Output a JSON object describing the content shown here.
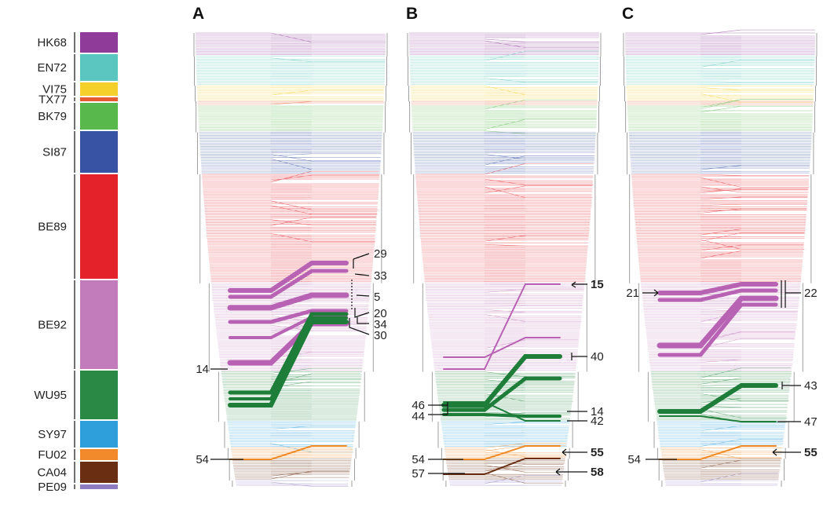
{
  "panels": [
    "A",
    "B",
    "C"
  ],
  "clusters": [
    {
      "name": "HK68",
      "color": "#8e3b9a",
      "rows": 15
    },
    {
      "name": "EN72",
      "color": "#5bc6bf",
      "rows": 19
    },
    {
      "name": "VI75",
      "color": "#f5cf2a",
      "rows": 10
    },
    {
      "name": "TX77",
      "color": "#e35b2e",
      "rows": 3
    },
    {
      "name": "BK79",
      "color": "#58b84b",
      "rows": 17
    },
    {
      "name": "SI87",
      "color": "#3953a4",
      "rows": 27
    },
    {
      "name": "BE89",
      "color": "#e3222a",
      "rows": 70
    },
    {
      "name": "BE92",
      "color": "#c37cbb",
      "rows": 57
    },
    {
      "name": "WU95",
      "color": "#2a8a45",
      "rows": 32
    },
    {
      "name": "SY97",
      "color": "#2f9fdc",
      "rows": 17
    },
    {
      "name": "FU02",
      "color": "#f28a2b",
      "rows": 7
    },
    {
      "name": "CA04",
      "color": "#6a2f12",
      "rows": 14
    },
    {
      "name": "PE09",
      "color": "#8e7bc0",
      "rows": 4
    }
  ],
  "annotations": {
    "A": {
      "left": [
        {
          "label": "14",
          "cluster": "WU95"
        },
        {
          "label": "54",
          "cluster": "FU02"
        }
      ],
      "right": [
        {
          "label": "29",
          "bold": false
        },
        {
          "label": "33",
          "bold": false
        },
        {
          "label": "5",
          "bold": false
        },
        {
          "label": "20",
          "bold": false
        },
        {
          "label": "34",
          "bold": false
        },
        {
          "label": "30",
          "bold": false
        }
      ]
    },
    "B": {
      "left": [
        {
          "label": "46"
        },
        {
          "label": "44"
        },
        {
          "label": "54"
        },
        {
          "label": "57"
        }
      ],
      "right": [
        {
          "label": "15",
          "bold": true
        },
        {
          "label": "40",
          "bold": false
        },
        {
          "label": "14",
          "bold": false
        },
        {
          "label": "42",
          "bold": false
        },
        {
          "label": "55",
          "bold": true
        },
        {
          "label": "58",
          "bold": true
        }
      ]
    },
    "C": {
      "left": [
        {
          "label": "21"
        },
        {
          "label": "54"
        }
      ],
      "right": [
        {
          "label": "22",
          "bold": false
        },
        {
          "label": "43",
          "bold": false
        },
        {
          "label": "47",
          "bold": false
        },
        {
          "label": "55",
          "bold": true
        }
      ]
    }
  }
}
